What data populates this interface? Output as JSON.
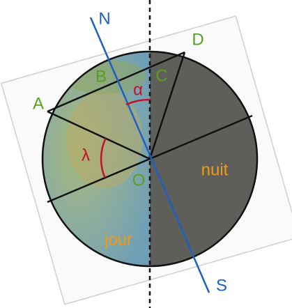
{
  "axis": {
    "north": "N",
    "south": "S"
  },
  "points": {
    "a": "A",
    "b": "B",
    "c": "C",
    "d": "D",
    "o": "O"
  },
  "angles": {
    "alpha": "α",
    "lambda": "λ"
  },
  "regions": {
    "night": "nuit",
    "day": "jour"
  }
}
